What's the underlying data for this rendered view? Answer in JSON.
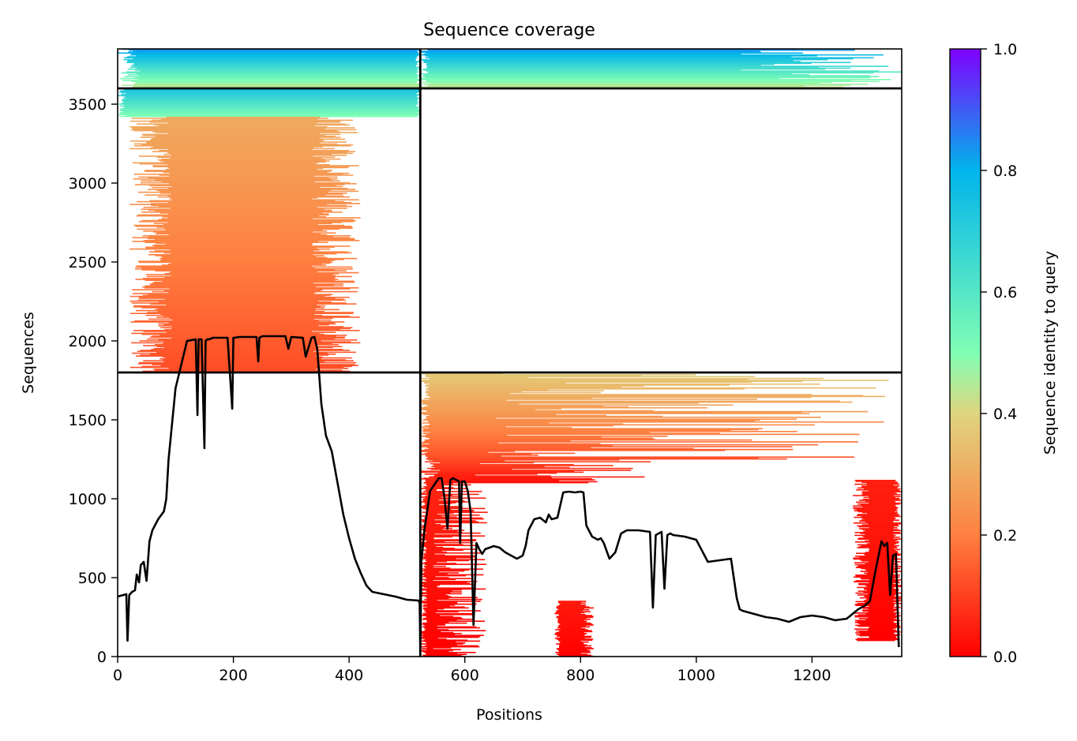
{
  "chart_data": {
    "type": "heatmap",
    "title": "Sequence coverage",
    "xlabel": "Positions",
    "ylabel": "Sequences",
    "xlim": [
      0,
      1355
    ],
    "ylim": [
      0,
      3850
    ],
    "x_ticks": [
      0,
      200,
      400,
      600,
      800,
      1000,
      1200
    ],
    "y_ticks": [
      0,
      500,
      1000,
      1500,
      2000,
      2500,
      3000,
      3500
    ],
    "grid": false,
    "colorbar": {
      "label": "Sequence identity to query",
      "range": [
        0,
        1
      ],
      "ticks": [
        0.0,
        0.2,
        0.4,
        0.6,
        0.8,
        1.0
      ],
      "tick_labels": [
        "0.0",
        "0.2",
        "0.4",
        "0.6",
        "0.8",
        "1.0"
      ],
      "colormap": "rainbow_r",
      "colors": [
        "#ff0000",
        "#ff8040",
        "#dfd57f",
        "#80ffb4",
        "#00b5eb",
        "#8000ff"
      ]
    },
    "chain_boundaries": {
      "x": [
        523
      ],
      "y": [
        1800,
        3600
      ]
    },
    "coverage_blocks": [
      {
        "y": [
          3600,
          3850
        ],
        "x": [
          0,
          523
        ],
        "start_spread": [
          0,
          40
        ],
        "end_spread": [
          515,
          523
        ],
        "identity": [
          0.42,
          0.85
        ]
      },
      {
        "y": [
          3600,
          3850
        ],
        "x": [
          523,
          1355
        ],
        "start_spread": [
          523,
          540
        ],
        "end_spread": [
          1075,
          1355
        ],
        "identity": [
          0.42,
          0.85
        ]
      },
      {
        "y": [
          3420,
          3600
        ],
        "x": [
          0,
          523
        ],
        "start_spread": [
          0,
          15
        ],
        "end_spread": [
          515,
          523
        ],
        "identity": [
          0.5,
          0.75
        ]
      },
      {
        "y": [
          1800,
          3420
        ],
        "x": [
          0,
          523
        ],
        "start_spread": [
          20,
          95
        ],
        "end_spread": [
          335,
          420
        ],
        "identity": [
          0.12,
          0.3
        ]
      },
      {
        "y": [
          1250,
          1800
        ],
        "x": [
          523,
          1355
        ],
        "start_spread": [
          523,
          540
        ],
        "end_spread": [
          640,
          1355
        ],
        "identity": [
          0.12,
          0.38
        ]
      },
      {
        "y": [
          1100,
          1250
        ],
        "x": [
          523,
          1355
        ],
        "start_spread": [
          523,
          560
        ],
        "end_spread": [
          600,
          940
        ],
        "identity": [
          0.02,
          0.12
        ]
      },
      {
        "y": [
          0,
          1130
        ],
        "x": [
          523,
          1355
        ],
        "start_spread": [
          523,
          535
        ],
        "end_spread": [
          545,
          640
        ],
        "identity": [
          0.0,
          0.06
        ]
      },
      {
        "y": [
          0,
          350
        ],
        "x": [
          755,
          825
        ],
        "start_spread": [
          755,
          765
        ],
        "end_spread": [
          800,
          825
        ],
        "identity": [
          0.0,
          0.04
        ]
      },
      {
        "y": [
          100,
          1120
        ],
        "x": [
          1075,
          1355
        ],
        "start_spread": [
          1270,
          1300
        ],
        "end_spread": [
          1340,
          1355
        ],
        "identity": [
          0.0,
          0.05
        ]
      }
    ],
    "coverage_line": {
      "x": [
        0,
        10,
        15,
        17,
        20,
        25,
        30,
        33,
        37,
        40,
        45,
        50,
        55,
        60,
        70,
        80,
        84,
        88,
        100,
        120,
        135,
        138,
        140,
        145,
        150,
        152,
        155,
        158,
        165,
        190,
        198,
        200,
        202,
        210,
        240,
        243,
        245,
        250,
        290,
        295,
        300,
        320,
        325,
        335,
        340,
        345,
        352,
        360,
        370,
        380,
        390,
        400,
        410,
        420,
        430,
        440,
        460,
        480,
        500,
        520,
        522,
        523,
        525,
        530,
        540,
        555,
        560,
        565,
        570,
        575,
        580,
        585,
        590,
        592,
        595,
        600,
        605,
        610,
        615,
        620,
        625,
        630,
        635,
        650,
        660,
        670,
        680,
        690,
        700,
        705,
        710,
        720,
        730,
        740,
        745,
        750,
        760,
        770,
        780,
        790,
        800,
        805,
        810,
        820,
        830,
        835,
        840,
        850,
        860,
        870,
        880,
        900,
        920,
        925,
        930,
        940,
        945,
        950,
        955,
        960,
        980,
        1000,
        1020,
        1040,
        1060,
        1070,
        1075,
        1080,
        1090,
        1100,
        1120,
        1140,
        1160,
        1180,
        1200,
        1220,
        1240,
        1260,
        1280,
        1290,
        1300,
        1310,
        1320,
        1325,
        1330,
        1335,
        1340,
        1345,
        1350,
        1352
      ],
      "y": [
        380,
        390,
        395,
        100,
        390,
        410,
        420,
        520,
        470,
        580,
        600,
        480,
        730,
        800,
        870,
        920,
        1000,
        1250,
        1700,
        2000,
        2010,
        1530,
        2010,
        2010,
        1320,
        2000,
        2010,
        2010,
        2020,
        2020,
        1570,
        2020,
        2020,
        2025,
        2025,
        1870,
        2020,
        2030,
        2030,
        1950,
        2025,
        2020,
        1900,
        2020,
        2025,
        1950,
        1600,
        1400,
        1300,
        1100,
        900,
        750,
        620,
        530,
        450,
        410,
        395,
        380,
        360,
        355,
        340,
        50,
        600,
        800,
        1050,
        1130,
        1130,
        1000,
        810,
        1120,
        1130,
        1120,
        1110,
        720,
        1110,
        1110,
        1050,
        920,
        200,
        720,
        680,
        650,
        680,
        700,
        690,
        660,
        640,
        620,
        640,
        700,
        800,
        870,
        880,
        850,
        900,
        870,
        880,
        1040,
        1045,
        1040,
        1045,
        1040,
        830,
        760,
        740,
        750,
        720,
        620,
        660,
        780,
        800,
        800,
        790,
        310,
        770,
        790,
        430,
        770,
        780,
        770,
        760,
        740,
        600,
        610,
        620,
        370,
        300,
        290,
        280,
        270,
        250,
        240,
        220,
        250,
        260,
        250,
        230,
        240,
        300,
        320,
        350,
        550,
        730,
        700,
        720,
        390,
        640,
        650,
        60
      ]
    }
  }
}
